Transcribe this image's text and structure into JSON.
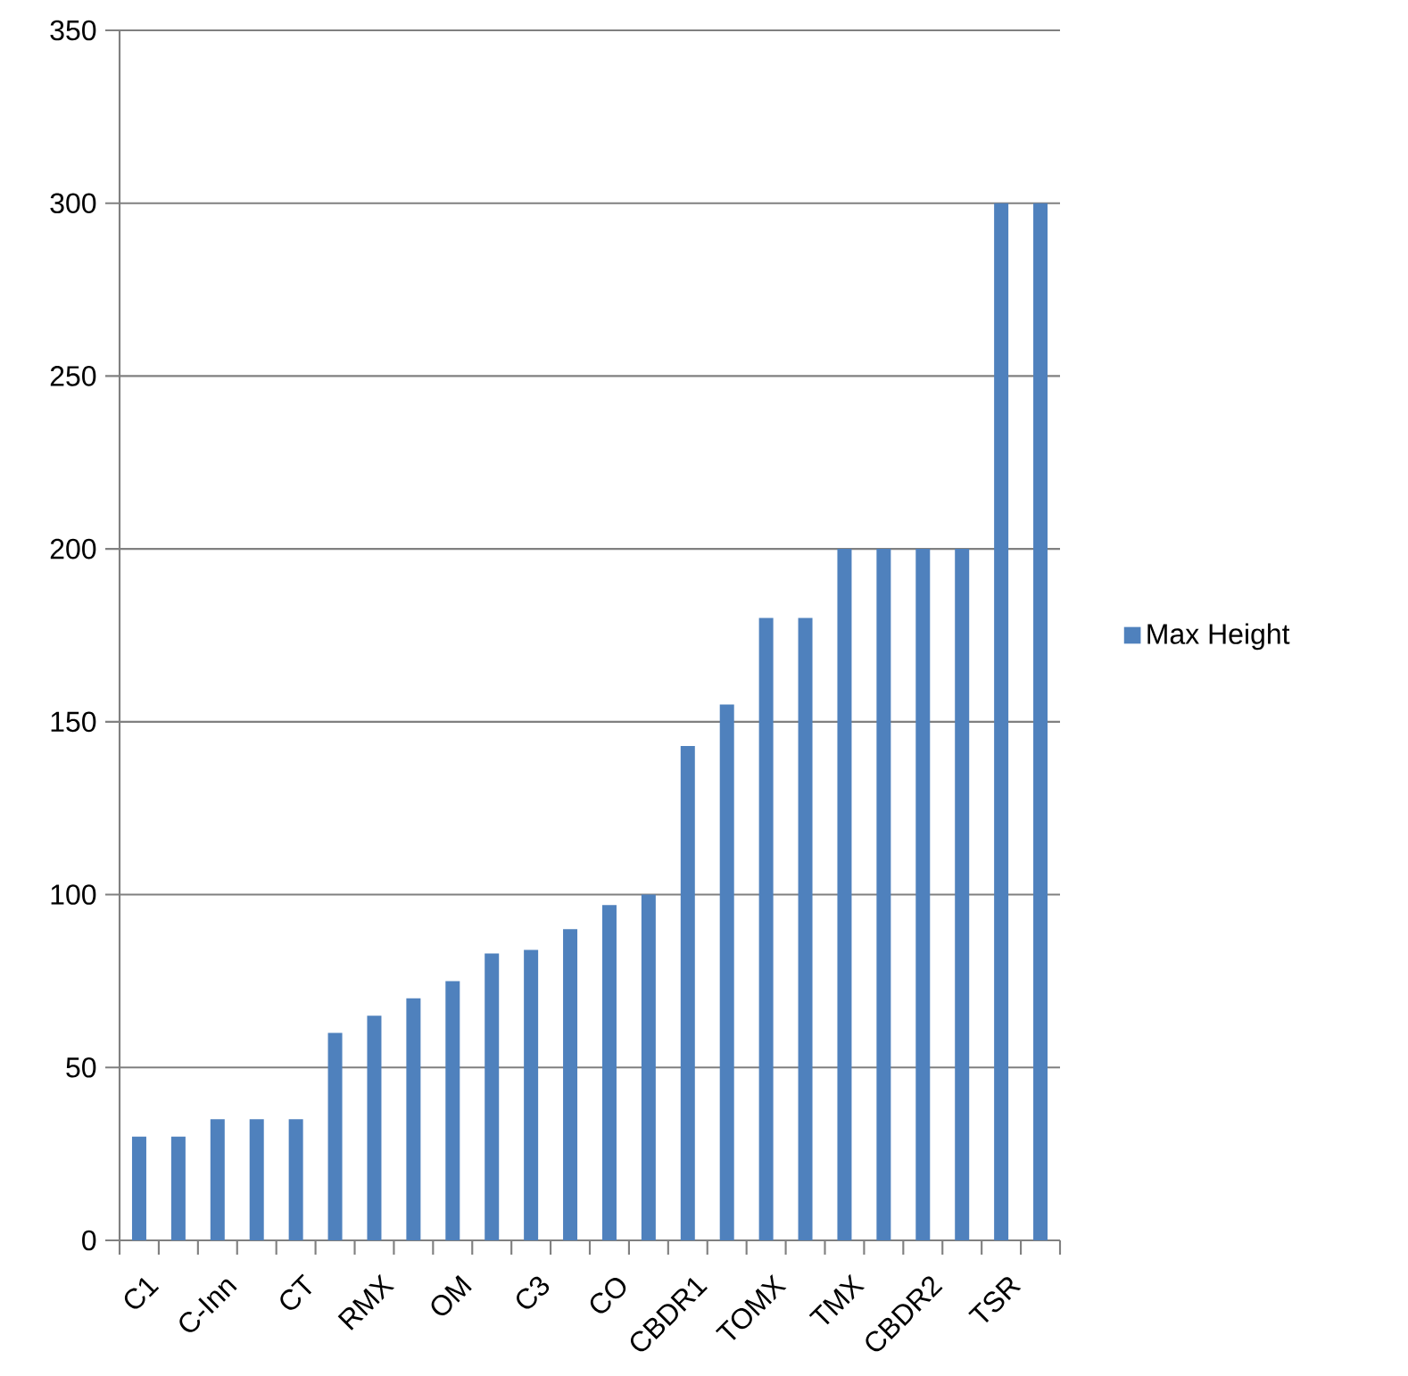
{
  "chart_data": {
    "type": "bar",
    "categories": [
      "C1",
      null,
      "C-Inn",
      null,
      "CT",
      null,
      "RMX",
      null,
      "OM",
      null,
      "C3",
      null,
      "CO",
      null,
      "CBDR1",
      null,
      "TOMX",
      null,
      "TMX",
      null,
      "CBDR2",
      null,
      "TSR",
      null
    ],
    "series": [
      {
        "name": "Max Height",
        "color": "#4f81bd",
        "values": [
          30,
          30,
          35,
          35,
          35,
          60,
          65,
          70,
          75,
          83,
          84,
          90,
          97,
          100,
          143,
          155,
          180,
          180,
          200,
          200,
          200,
          200,
          300,
          300
        ]
      }
    ],
    "ylim": [
      0,
      350
    ],
    "yticks": [
      0,
      50,
      100,
      150,
      200,
      250,
      300,
      350
    ],
    "grid": "y",
    "legend": "right"
  }
}
